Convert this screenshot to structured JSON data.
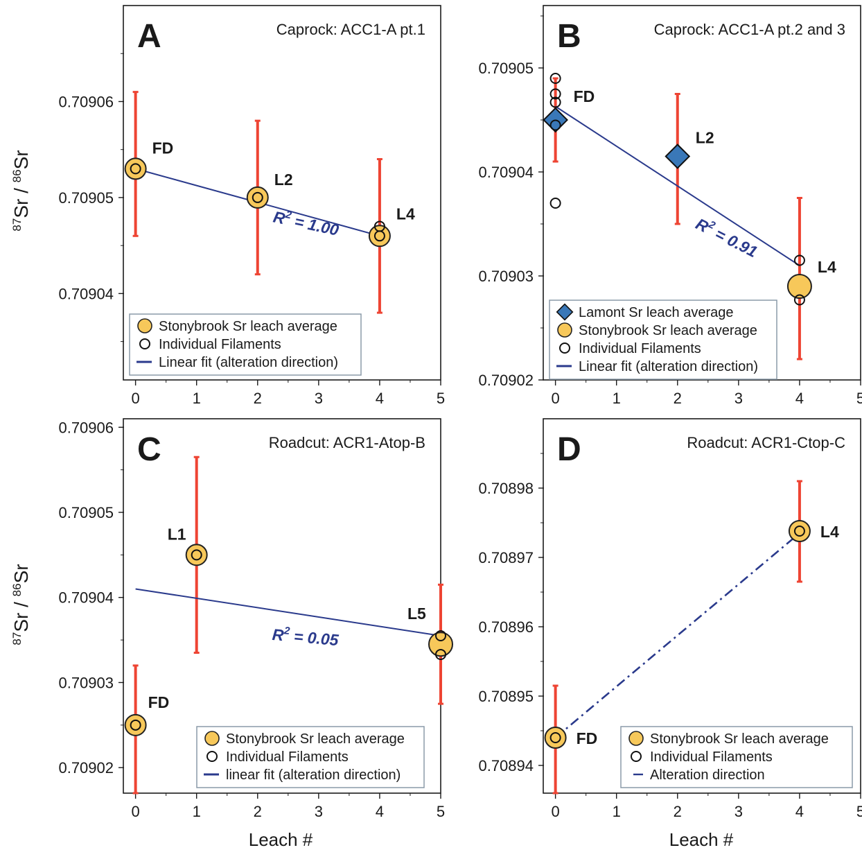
{
  "figure": {
    "ylabel": "87Sr / 86Sr",
    "ylabel_parts": {
      "sup1": "87",
      "main1": "Sr / ",
      "sup2": "86",
      "main2": "Sr"
    },
    "xlabel": "Leach #"
  },
  "colors": {
    "frame": "#1a1a1a",
    "errorbar": "#ee4433",
    "stonybrook_fill": "#f7c85a",
    "lamont_fill": "#3a78b8",
    "fit_line": "#2a3a8c",
    "r2_text": "#2a3a8c"
  },
  "chart_data": [
    {
      "type": "scatter",
      "panel_letter": "A",
      "title": "Caprock: ACC1-A pt.1",
      "xlim": [
        -0.2,
        5
      ],
      "ylim": [
        0.709031,
        0.70907
      ],
      "xticks": [
        0,
        1,
        2,
        3,
        4,
        5
      ],
      "yticks": [
        0.70904,
        0.70905,
        0.70906
      ],
      "ytick_labels": [
        "0.70904",
        "0.70905",
        "0.70906"
      ],
      "minor_yticks": [
        0.709035,
        0.709045,
        0.709055,
        0.709065
      ],
      "points": [
        {
          "series": "Stonybrook Sr leach average",
          "x": 0,
          "y": 0.709053,
          "err_low": 0.709046,
          "err_high": 0.709061,
          "label": "FD"
        },
        {
          "series": "Stonybrook Sr leach average",
          "x": 2,
          "y": 0.70905,
          "err_low": 0.709042,
          "err_high": 0.709058,
          "label": "L2"
        },
        {
          "series": "Stonybrook Sr leach average",
          "x": 4,
          "y": 0.709046,
          "err_low": 0.709038,
          "err_high": 0.709054,
          "label": "L4"
        }
      ],
      "filaments": [
        {
          "x": 0,
          "y": 0.709053
        },
        {
          "x": 2,
          "y": 0.70905
        },
        {
          "x": 4,
          "y": 0.709047
        },
        {
          "x": 4,
          "y": 0.709046
        }
      ],
      "fit": {
        "x": [
          0,
          4
        ],
        "y": [
          0.709053,
          0.709046
        ],
        "style": "solid",
        "r2_label": "R² = 1.00",
        "r2_sup": "2",
        "r2_value": "= 1.00"
      },
      "legend": [
        "Stonybrook Sr leach average",
        "Individual Filaments",
        "Linear fit (alteration direction)"
      ],
      "legend_position": "bottom-left"
    },
    {
      "type": "scatter",
      "panel_letter": "B",
      "title": "Caprock: ACC1-A pt.2 and 3",
      "xlim": [
        -0.2,
        5
      ],
      "ylim": [
        0.70902,
        0.709056
      ],
      "xticks": [
        0,
        1,
        2,
        3,
        4,
        5
      ],
      "yticks": [
        0.70902,
        0.70903,
        0.70904,
        0.70905
      ],
      "ytick_labels": [
        "0.70902",
        "0.70903",
        "0.70904",
        "0.70905"
      ],
      "minor_yticks": [
        0.709025,
        0.709035,
        0.709045,
        0.709055
      ],
      "points": [
        {
          "series": "Lamont Sr leach average",
          "x": 0,
          "y": 0.709045,
          "err_low": 0.709041,
          "err_high": 0.709049,
          "label": "FD"
        },
        {
          "series": "Lamont Sr leach average",
          "x": 2,
          "y": 0.7090415,
          "err_low": 0.709035,
          "err_high": 0.7090475,
          "label": "L2"
        },
        {
          "series": "Stonybrook Sr leach average",
          "x": 4,
          "y": 0.709029,
          "err_low": 0.709022,
          "err_high": 0.7090375,
          "label": "L4"
        }
      ],
      "filaments": [
        {
          "x": 0,
          "y": 0.709049
        },
        {
          "x": 0,
          "y": 0.7090475
        },
        {
          "x": 0,
          "y": 0.7090467
        },
        {
          "x": 0,
          "y": 0.7090445
        },
        {
          "x": 0,
          "y": 0.709037
        },
        {
          "x": 4,
          "y": 0.7090315
        },
        {
          "x": 4,
          "y": 0.7090277
        }
      ],
      "fit": {
        "x": [
          0,
          4
        ],
        "y": [
          0.7090463,
          0.709031
        ],
        "style": "solid",
        "r2_label": "R² = 0.91",
        "r2_sup": "2",
        "r2_value": "= 0.91"
      },
      "legend": [
        "Lamont Sr leach average",
        "Stonybrook Sr leach average",
        "Individual Filaments",
        "Linear fit (alteration direction)"
      ],
      "legend_position": "bottom-left"
    },
    {
      "type": "scatter",
      "panel_letter": "C",
      "title": "Roadcut: ACR1-Atop-B",
      "xlim": [
        -0.2,
        5
      ],
      "ylim": [
        0.709017,
        0.709061
      ],
      "xticks": [
        0,
        1,
        2,
        3,
        4,
        5
      ],
      "yticks": [
        0.70902,
        0.70903,
        0.70904,
        0.70905,
        0.70906
      ],
      "ytick_labels": [
        "0.70902",
        "0.70903",
        "0.70904",
        "0.70905",
        "0.70906"
      ],
      "minor_yticks": [
        0.709025,
        0.709035,
        0.709045,
        0.709055
      ],
      "points": [
        {
          "series": "Stonybrook Sr leach average",
          "x": 0,
          "y": 0.709025,
          "err_low": 0.709017,
          "err_high": 0.709032,
          "label": "FD"
        },
        {
          "series": "Stonybrook Sr leach average",
          "x": 1,
          "y": 0.709045,
          "err_low": 0.7090335,
          "err_high": 0.7090565,
          "label": "L1"
        },
        {
          "series": "Stonybrook Sr leach average",
          "x": 5,
          "y": 0.7090345,
          "err_low": 0.7090275,
          "err_high": 0.7090415,
          "label": "L5"
        }
      ],
      "filaments": [
        {
          "x": 0,
          "y": 0.709025
        },
        {
          "x": 1,
          "y": 0.709045
        },
        {
          "x": 5,
          "y": 0.7090355
        },
        {
          "x": 5,
          "y": 0.7090333
        }
      ],
      "fit": {
        "x": [
          0,
          5
        ],
        "y": [
          0.709041,
          0.7090355
        ],
        "style": "solid",
        "r2_label": "R² = 0.05",
        "r2_sup": "2",
        "r2_value": "= 0.05"
      },
      "legend": [
        "Stonybrook Sr leach average",
        "Individual Filaments",
        "linear fit (alteration direction)"
      ],
      "legend_position": "bottom-right"
    },
    {
      "type": "scatter",
      "panel_letter": "D",
      "title": "Roadcut: ACR1-Ctop-C",
      "xlim": [
        -0.2,
        5
      ],
      "ylim": [
        0.708936,
        0.70899
      ],
      "xticks": [
        0,
        1,
        2,
        3,
        4,
        5
      ],
      "yticks": [
        0.70894,
        0.70895,
        0.70896,
        0.70897,
        0.70898
      ],
      "ytick_labels": [
        "0.70894",
        "0.70895",
        "0.70896",
        "0.70897",
        "0.70898"
      ],
      "minor_yticks": [
        0.708945,
        0.708955,
        0.708965,
        0.708975,
        0.708985
      ],
      "points": [
        {
          "series": "Stonybrook Sr leach average",
          "x": 0,
          "y": 0.708944,
          "err_low": 0.708936,
          "err_high": 0.7089515,
          "label": "FD"
        },
        {
          "series": "Stonybrook Sr leach average",
          "x": 4,
          "y": 0.7089738,
          "err_low": 0.7089665,
          "err_high": 0.708981,
          "label": "L4"
        }
      ],
      "filaments": [
        {
          "x": 0,
          "y": 0.708944
        },
        {
          "x": 4,
          "y": 0.7089738
        }
      ],
      "fit": {
        "x": [
          0,
          4
        ],
        "y": [
          0.708944,
          0.7089735
        ],
        "style": "dashdot",
        "r2_label": "",
        "r2_sup": "",
        "r2_value": ""
      },
      "legend": [
        "Stonybrook Sr leach average",
        "Individual Filaments",
        "Alteration direction"
      ],
      "legend_position": "bottom-right"
    }
  ]
}
